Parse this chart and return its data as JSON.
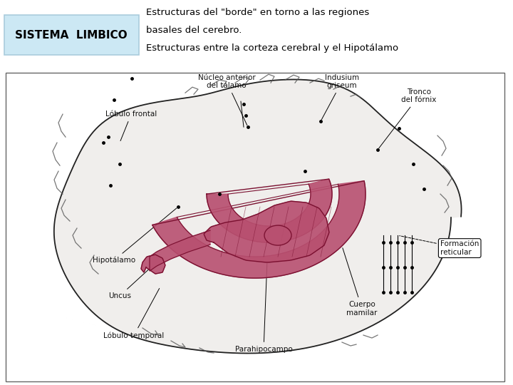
{
  "title_box_text": "SISTEMA  LIMBICO",
  "title_box_bg": "#cce8f4",
  "title_box_border": "#aaccdd",
  "title_text_color": "#000000",
  "description_line1": "Estructuras del \"borde\" en torno a las regiones",
  "description_line2": "basales del cerebro.",
  "description_line3": "Estructuras entre la corteza cerebral y el Hipotálamo",
  "bg_color": "#ffffff",
  "title_fontsize": 11,
  "desc_fontsize": 9.5,
  "image_border_color": "#666666",
  "limbic_fill": "#b85070",
  "limbic_edge": "#7a1030",
  "brain_fill": "#f0eeec",
  "brain_edge": "#222222"
}
